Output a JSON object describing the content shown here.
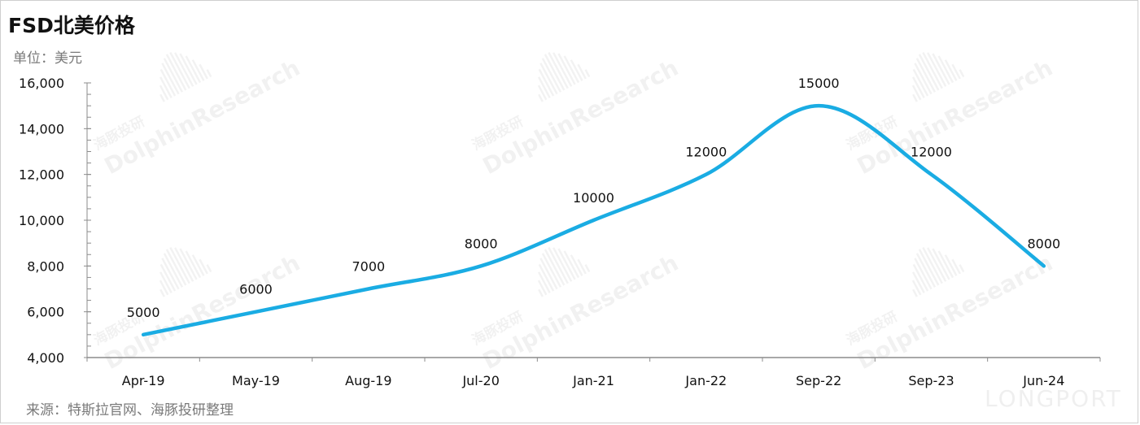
{
  "header": {
    "title": "FSD北美价格",
    "unit": "单位：美元"
  },
  "footer": {
    "source": "来源：特斯拉官网、海豚投研整理"
  },
  "watermark": {
    "brand_en": "DolphinResearch",
    "brand_cn": "海豚投研",
    "corner": "LONGPORT"
  },
  "colors": {
    "line": "#1aace3",
    "axis": "#8c8c8c",
    "text": "#111111"
  },
  "chart_data": {
    "type": "line",
    "title": "FSD北美价格",
    "ylabel": "单位：美元",
    "xlabel": "",
    "categories": [
      "Apr-19",
      "May-19",
      "Aug-19",
      "Jul-20",
      "Jan-21",
      "Jan-22",
      "Sep-22",
      "Sep-23",
      "Jun-24"
    ],
    "values": [
      5000,
      6000,
      7000,
      8000,
      10000,
      12000,
      15000,
      12000,
      8000
    ],
    "data_labels": [
      "5000",
      "6000",
      "7000",
      "8000",
      "10000",
      "12000",
      "15000",
      "12000",
      "8000"
    ],
    "ylim": [
      4000,
      16000
    ],
    "yticks": [
      4000,
      6000,
      8000,
      10000,
      12000,
      14000,
      16000
    ],
    "ytick_labels": [
      "4,000",
      "6,000",
      "8,000",
      "10,000",
      "12,000",
      "14,000",
      "16,000"
    ],
    "smooth": true,
    "grid": false,
    "legend": "none"
  }
}
